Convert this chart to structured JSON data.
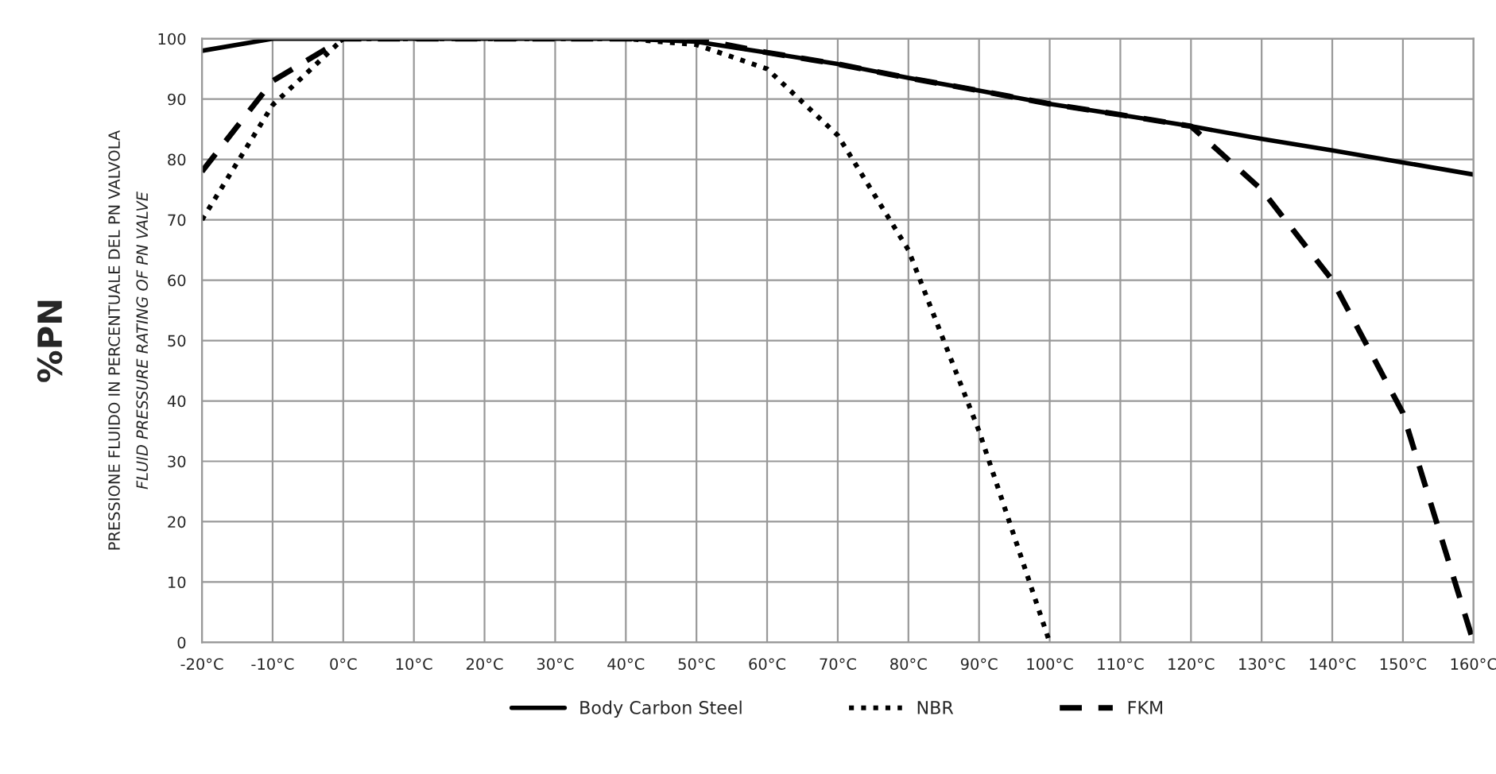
{
  "chart_data": {
    "type": "line",
    "ylabel": "%PN",
    "annotations": [
      "PRESSIONE FLUIDO IN PERCENTUALE DEL PN VALVOLA",
      "FLUID PRESSURE RATING OF PN VALVE"
    ],
    "categories": [
      "-20°C",
      "-10°C",
      "0°C",
      "10°C",
      "20°C",
      "30°C",
      "40°C",
      "50°C",
      "60°C",
      "70°C",
      "80°C",
      "90°C",
      "100°C",
      "110°C",
      "120°C",
      "130°C",
      "140°C",
      "150°C",
      "160°C"
    ],
    "series": [
      {
        "name": "Body Carbon Steel",
        "color": "#000000",
        "line_style": "solid",
        "values": [
          98,
          100,
          100,
          100,
          100,
          100,
          100,
          99.5,
          97.7,
          95.8,
          93.5,
          91.4,
          89.2,
          87.4,
          85.5,
          83.4,
          81.5,
          79.5,
          77.5
        ]
      },
      {
        "name": "NBR",
        "color": "#000000",
        "line_style": "dotted",
        "values": [
          70,
          89,
          100,
          100,
          100,
          100,
          100,
          99,
          95,
          84,
          65,
          35,
          0,
          null,
          null,
          null,
          null,
          null,
          null
        ]
      },
      {
        "name": "FKM",
        "color": "#000000",
        "line_style": "dashed",
        "values": [
          78,
          93,
          100,
          100,
          100,
          100,
          100,
          100,
          97.7,
          95.8,
          93.5,
          91.4,
          89.2,
          87.4,
          85.5,
          75,
          60,
          38,
          0
        ]
      }
    ],
    "ylim": [
      0,
      100
    ],
    "yticks": [
      0,
      10,
      20,
      30,
      40,
      50,
      60,
      70,
      80,
      90,
      100
    ],
    "grid": true,
    "legend": "bottom"
  }
}
